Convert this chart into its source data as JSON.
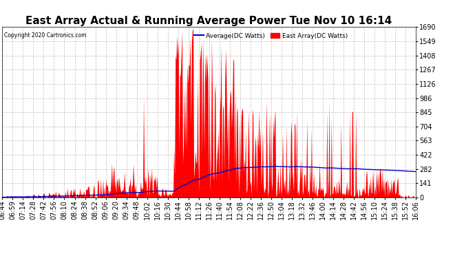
{
  "title": "East Array Actual & Running Average Power Tue Nov 10 16:14",
  "copyright": "Copyright 2020 Cartronics.com",
  "legend_avg": "Average(DC Watts)",
  "legend_east": "East Array(DC Watts)",
  "ymin": 0.0,
  "ymax": 1689.8,
  "yticks": [
    0.0,
    140.8,
    281.6,
    422.4,
    563.3,
    704.1,
    844.9,
    985.7,
    1126.5,
    1267.3,
    1408.2,
    1549.0,
    1689.8
  ],
  "background_color": "#ffffff",
  "grid_color": "#bbbbbb",
  "fill_color": "#ff0000",
  "avg_color": "#0000cc",
  "title_fontsize": 11,
  "tick_fontsize": 7,
  "xtick_labels": [
    "06:44",
    "06:59",
    "07:14",
    "07:28",
    "07:42",
    "07:56",
    "08:10",
    "08:24",
    "08:38",
    "08:52",
    "09:06",
    "09:20",
    "09:34",
    "09:48",
    "10:02",
    "10:16",
    "10:30",
    "10:44",
    "10:58",
    "11:12",
    "11:26",
    "11:40",
    "11:54",
    "12:08",
    "12:22",
    "12:36",
    "12:50",
    "13:04",
    "13:18",
    "13:32",
    "13:46",
    "14:00",
    "14:14",
    "14:28",
    "14:42",
    "14:56",
    "15:10",
    "15:24",
    "15:38",
    "15:52",
    "16:06"
  ],
  "n_points": 560
}
